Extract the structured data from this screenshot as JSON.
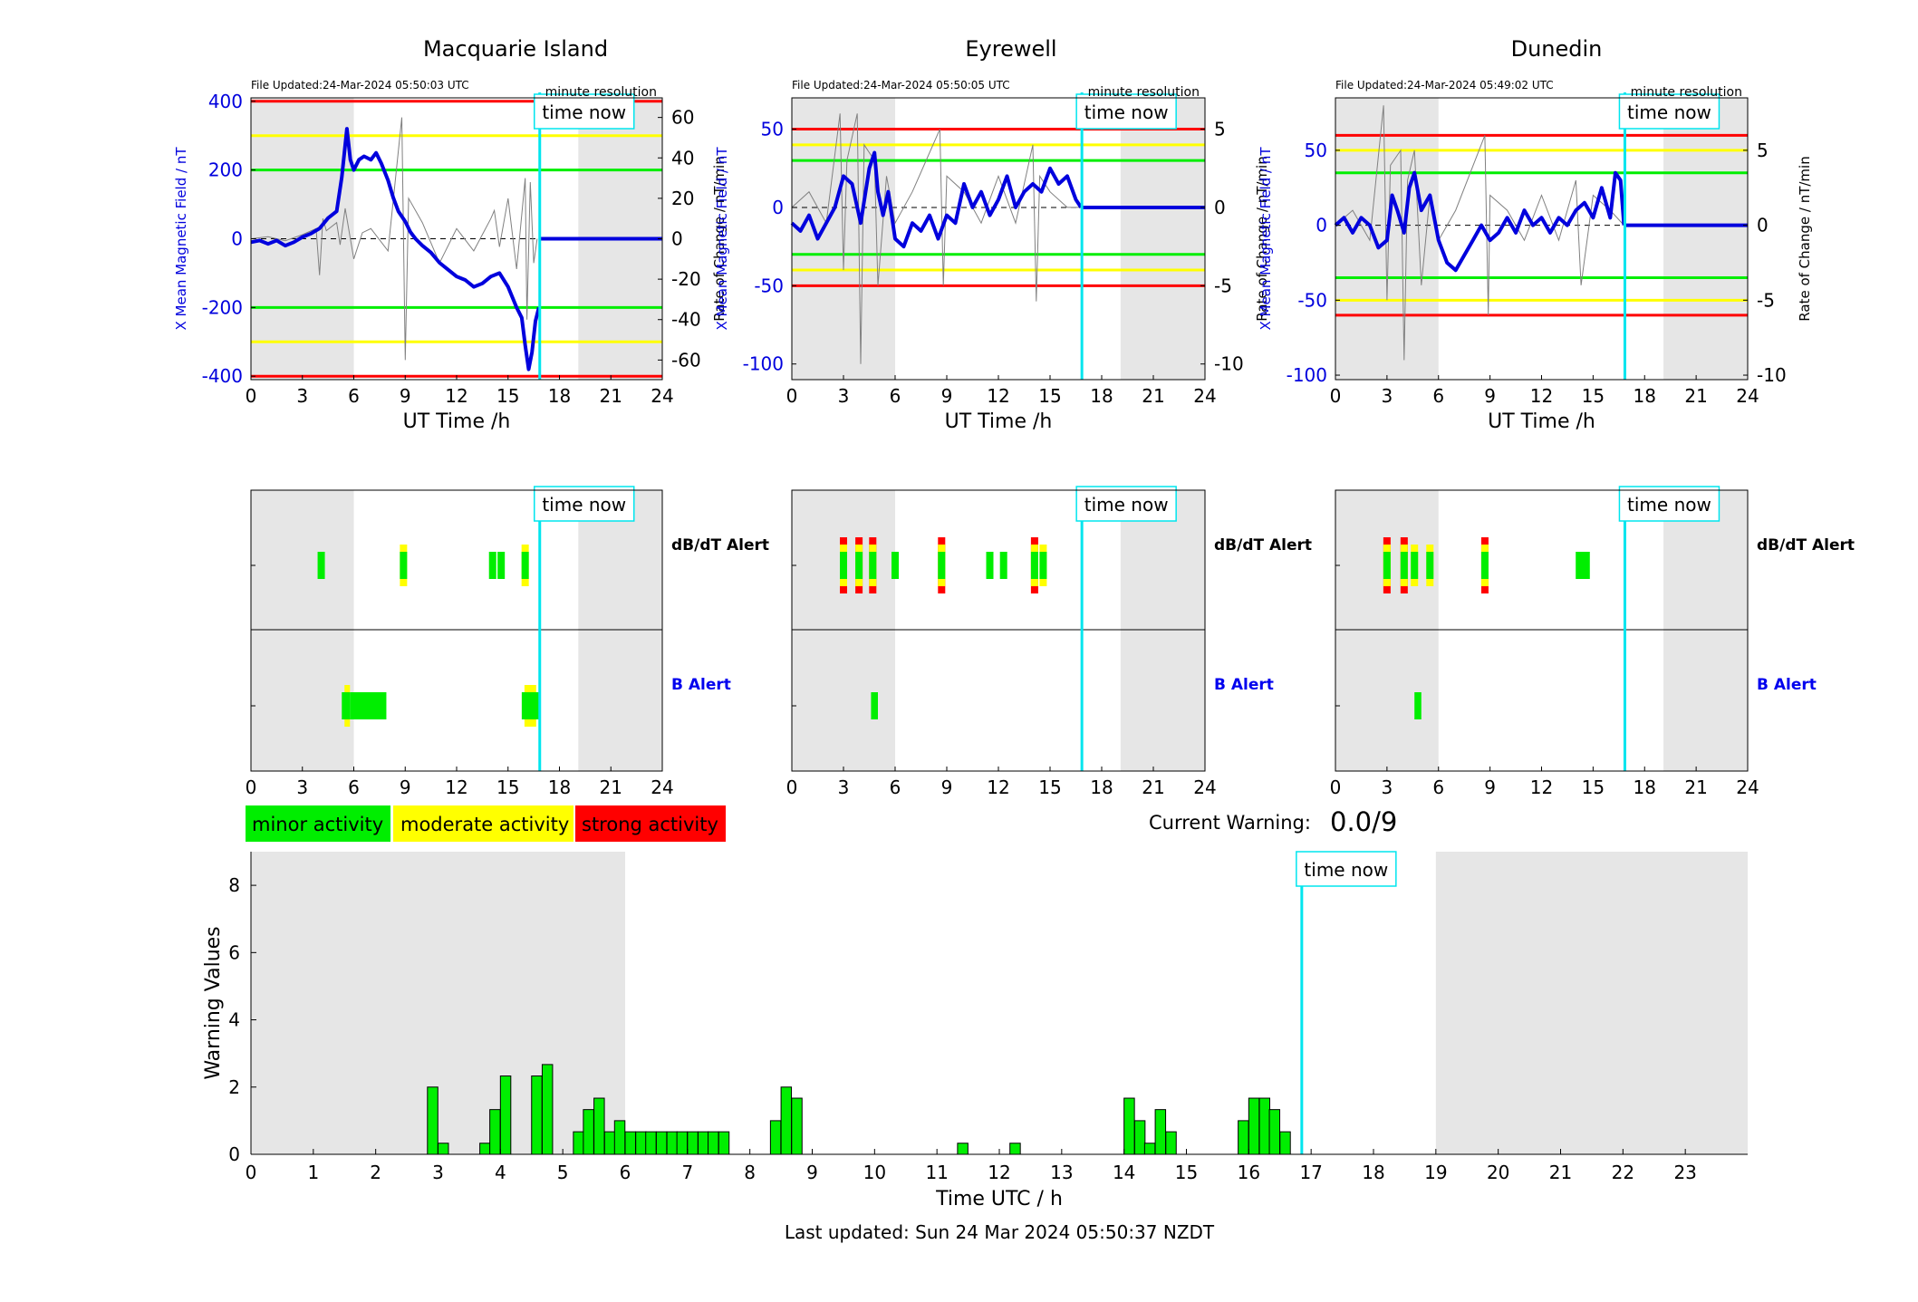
{
  "figure": {
    "last_updated": "Last updated: Sun 24 Mar 2024 05:50:37 NZDT",
    "current_warning_label": "Current Warning:",
    "current_warning_value": "0.0/9",
    "time_now_label": "time now",
    "minute_resolution_label": "minute resolution"
  },
  "colors": {
    "minor": "#00ee00",
    "moderate": "#ffff00",
    "strong": "#ff0000",
    "mean_field": "#0000dd",
    "rate_trace": "#808080",
    "time_now": "#00e5ee",
    "night_shade": "#e6e6e6",
    "b_alert_label": "#0000ee"
  },
  "legend": [
    {
      "label": "minor activity",
      "level": "minor"
    },
    {
      "label": "moderate activity",
      "level": "moderate"
    },
    {
      "label": "strong activity",
      "level": "strong"
    }
  ],
  "chart_data": [
    {
      "type": "line",
      "title": "Macquarie Island",
      "file_updated": "File Updated:24-Mar-2024 05:50:03 UTC",
      "xlabel": "UT Time /h",
      "ylabel_left": "X Mean Magnetic Field / nT",
      "ylabel_right": "Rate of Change / nT/min",
      "xlim": [
        0,
        24
      ],
      "xticks": [
        0,
        3,
        6,
        9,
        12,
        15,
        18,
        21,
        24
      ],
      "ylim_left": [
        -410,
        410
      ],
      "yticks_left": [
        -400,
        -200,
        0,
        200,
        400
      ],
      "ylim_right": [
        -69.7,
        69.7
      ],
      "yticks_right": [
        -60,
        -40,
        -20,
        0,
        20,
        40,
        60
      ],
      "thresholds": [
        {
          "level": "strong",
          "values": [
            400,
            -400
          ]
        },
        {
          "level": "moderate",
          "values": [
            300,
            -300
          ]
        },
        {
          "level": "minor",
          "values": [
            200,
            -200
          ]
        }
      ],
      "time_now": 16.85,
      "night": [
        [
          0,
          6
        ],
        [
          19.1,
          24
        ]
      ],
      "mean_field": {
        "x": [
          0,
          0.5,
          1,
          1.5,
          2,
          2.5,
          3,
          3.5,
          4,
          4.5,
          5,
          5.3,
          5.6,
          5.8,
          6,
          6.3,
          6.6,
          7,
          7.3,
          7.6,
          8,
          8.3,
          8.6,
          9,
          9.3,
          9.6,
          10,
          10.5,
          11,
          11.5,
          12,
          12.5,
          13,
          13.5,
          14,
          14.5,
          15,
          15.5,
          15.8,
          16,
          16.2,
          16.4,
          16.6,
          16.8
        ],
        "y": [
          -10,
          -5,
          -15,
          -5,
          -20,
          -10,
          5,
          15,
          30,
          60,
          80,
          180,
          320,
          230,
          200,
          230,
          240,
          230,
          250,
          220,
          170,
          120,
          80,
          50,
          20,
          0,
          -20,
          -40,
          -70,
          -90,
          -110,
          -120,
          -140,
          -130,
          -110,
          -100,
          -140,
          -200,
          -230,
          -310,
          -380,
          -330,
          -240,
          -200
        ]
      },
      "rate": {
        "x": [
          0,
          1,
          2,
          3,
          3.8,
          4,
          4.2,
          4.4,
          5,
          5.2,
          5.5,
          6,
          6.5,
          7,
          8,
          8.8,
          9,
          9.2,
          10,
          11,
          12,
          13,
          14,
          14.2,
          14.5,
          15,
          15.5,
          16,
          16.1,
          16.3,
          16.5,
          16.7
        ],
        "y": [
          0,
          1,
          -1,
          2,
          5,
          -18,
          10,
          4,
          8,
          -3,
          15,
          -10,
          3,
          5,
          -6,
          60,
          -60,
          20,
          8,
          -12,
          5,
          -6,
          10,
          14,
          -4,
          20,
          -15,
          30,
          -40,
          28,
          -12,
          0
        ]
      },
      "db_dt_alerts": [
        {
          "x": 4.1,
          "levels": [
            "minor"
          ]
        },
        {
          "x": 8.9,
          "levels": [
            "minor",
            "moderate"
          ]
        },
        {
          "x": 14.1,
          "levels": [
            "minor"
          ]
        },
        {
          "x": 14.6,
          "levels": [
            "minor"
          ]
        },
        {
          "x": 16.0,
          "levels": [
            "minor",
            "moderate"
          ]
        }
      ],
      "b_alerts": [
        {
          "x": [
            5.3,
            5.8
          ],
          "levels": [
            "minor",
            "moderate"
          ]
        },
        {
          "x": [
            5.8,
            7.9
          ],
          "levels": [
            "minor"
          ]
        },
        {
          "x": [
            15.8,
            16.8
          ],
          "levels": [
            "minor",
            "moderate"
          ]
        }
      ]
    },
    {
      "type": "line",
      "title": "Eyrewell",
      "file_updated": "File Updated:24-Mar-2024 05:50:05 UTC",
      "xlabel": "UT Time /h",
      "ylabel_left": "X Mean Magnetic Field / nT",
      "ylabel_right": "Rate of Change / nT/min",
      "xlim": [
        0,
        24
      ],
      "xticks": [
        0,
        3,
        6,
        9,
        12,
        15,
        18,
        21,
        24
      ],
      "ylim_left": [
        -110,
        70
      ],
      "yticks_left": [
        -100,
        -50,
        0,
        50
      ],
      "ylim_right": [
        -11,
        7
      ],
      "yticks_right": [
        -10,
        -5,
        0,
        5
      ],
      "thresholds": [
        {
          "level": "strong",
          "values": [
            50,
            -50
          ]
        },
        {
          "level": "moderate",
          "values": [
            40,
            -40
          ]
        },
        {
          "level": "minor",
          "values": [
            30,
            -30
          ]
        }
      ],
      "time_now": 16.85,
      "night": [
        [
          0,
          6
        ],
        [
          19.1,
          24
        ]
      ],
      "mean_field": {
        "x": [
          0,
          0.5,
          1,
          1.5,
          2,
          2.5,
          3,
          3.5,
          4,
          4.5,
          4.8,
          5,
          5.3,
          5.6,
          6,
          6.5,
          7,
          7.5,
          8,
          8.5,
          9,
          9.5,
          10,
          10.5,
          11,
          11.5,
          12,
          12.5,
          13,
          13.5,
          14,
          14.5,
          15,
          15.5,
          16,
          16.5,
          16.8
        ],
        "y": [
          -10,
          -15,
          -5,
          -20,
          -10,
          0,
          20,
          15,
          -10,
          25,
          35,
          10,
          -5,
          10,
          -20,
          -25,
          -10,
          -15,
          -5,
          -20,
          -5,
          -10,
          15,
          0,
          10,
          -5,
          5,
          20,
          0,
          10,
          15,
          10,
          25,
          15,
          20,
          5,
          0
        ]
      },
      "rate": {
        "x": [
          0,
          1,
          2,
          2.8,
          3,
          3.2,
          3.8,
          4,
          4.2,
          4.8,
          5,
          5.5,
          6,
          7,
          8.6,
          8.8,
          9,
          10,
          11,
          12,
          13,
          14,
          14.2,
          14.4,
          15,
          16,
          16.8
        ],
        "y": [
          0,
          1,
          -1,
          6,
          -4,
          3,
          6,
          -10,
          4,
          3,
          -5,
          2,
          -1,
          1,
          5,
          -5,
          2,
          1,
          -1,
          2,
          -1,
          4,
          -6,
          2,
          1,
          0,
          0
        ]
      },
      "db_dt_alerts": [
        {
          "x": 3.0,
          "levels": [
            "minor",
            "moderate",
            "strong"
          ]
        },
        {
          "x": 3.9,
          "levels": [
            "minor",
            "moderate",
            "strong"
          ]
        },
        {
          "x": 4.7,
          "levels": [
            "minor",
            "moderate",
            "strong"
          ]
        },
        {
          "x": 6.0,
          "levels": [
            "minor"
          ]
        },
        {
          "x": 8.7,
          "levels": [
            "minor",
            "moderate",
            "strong"
          ]
        },
        {
          "x": 11.5,
          "levels": [
            "minor"
          ]
        },
        {
          "x": 12.3,
          "levels": [
            "minor"
          ]
        },
        {
          "x": 14.1,
          "levels": [
            "minor",
            "moderate",
            "strong"
          ]
        },
        {
          "x": 14.6,
          "levels": [
            "minor",
            "moderate"
          ]
        }
      ],
      "b_alerts": [
        {
          "x": [
            4.6,
            5.0
          ],
          "levels": [
            "minor"
          ]
        }
      ]
    },
    {
      "type": "line",
      "title": "Dunedin",
      "file_updated": "File Updated:24-Mar-2024 05:49:02 UTC",
      "xlabel": "UT Time /h",
      "ylabel_left": "X Mean Magnetic Field / nT",
      "ylabel_right": "Rate of Change / nT/min",
      "xlim": [
        0,
        24
      ],
      "xticks": [
        0,
        3,
        6,
        9,
        12,
        15,
        18,
        21,
        24
      ],
      "ylim_left": [
        -103,
        85
      ],
      "yticks_left": [
        -100,
        -50,
        0,
        50
      ],
      "ylim_right": [
        -10.3,
        8.5
      ],
      "yticks_right": [
        -10,
        -5,
        0,
        5
      ],
      "thresholds": [
        {
          "level": "strong",
          "values": [
            60,
            -60
          ]
        },
        {
          "level": "moderate",
          "values": [
            50,
            -50
          ]
        },
        {
          "level": "minor",
          "values": [
            35,
            -35
          ]
        }
      ],
      "time_now": 16.85,
      "night": [
        [
          0,
          6
        ],
        [
          19.1,
          24
        ]
      ],
      "mean_field": {
        "x": [
          0,
          0.5,
          1,
          1.5,
          2,
          2.5,
          3,
          3.3,
          3.6,
          4,
          4.3,
          4.6,
          5,
          5.5,
          6,
          6.5,
          7,
          7.5,
          8,
          8.5,
          9,
          9.5,
          10,
          10.5,
          11,
          11.5,
          12,
          12.5,
          13,
          13.5,
          14,
          14.5,
          15,
          15.5,
          16,
          16.3,
          16.6,
          16.8
        ],
        "y": [
          0,
          5,
          -5,
          5,
          0,
          -15,
          -10,
          20,
          10,
          -5,
          25,
          35,
          10,
          20,
          -10,
          -25,
          -30,
          -20,
          -10,
          0,
          -10,
          -5,
          5,
          -5,
          10,
          0,
          5,
          -5,
          5,
          0,
          10,
          15,
          5,
          25,
          5,
          35,
          30,
          0
        ]
      },
      "rate": {
        "x": [
          0,
          1,
          2,
          2.8,
          3,
          3.2,
          3.8,
          4,
          4.2,
          4.6,
          5,
          5.5,
          6,
          7,
          8.7,
          8.9,
          9,
          10,
          11,
          12,
          13,
          14,
          14.3,
          15,
          16,
          16.8
        ],
        "y": [
          0,
          1,
          -1,
          8,
          -5,
          4,
          5,
          -9,
          3,
          5,
          -4,
          2,
          -1,
          1,
          6,
          -6,
          2,
          1,
          -1,
          2,
          -1,
          3,
          -4,
          2,
          1,
          0
        ]
      },
      "db_dt_alerts": [
        {
          "x": 3.0,
          "levels": [
            "minor",
            "moderate",
            "strong"
          ]
        },
        {
          "x": 4.0,
          "levels": [
            "minor",
            "moderate",
            "strong"
          ]
        },
        {
          "x": 4.6,
          "levels": [
            "minor",
            "moderate"
          ]
        },
        {
          "x": 5.5,
          "levels": [
            "minor",
            "moderate"
          ]
        },
        {
          "x": 8.7,
          "levels": [
            "minor",
            "moderate",
            "strong"
          ]
        },
        {
          "x": 14.2,
          "levels": [
            "minor"
          ]
        },
        {
          "x": 14.6,
          "levels": [
            "minor"
          ]
        }
      ],
      "b_alerts": [
        {
          "x": [
            4.6,
            5.0
          ],
          "levels": [
            "minor"
          ]
        }
      ]
    },
    {
      "type": "bar",
      "title": "",
      "xlabel": "Time UTC / h",
      "ylabel": "Warning Values",
      "xlim": [
        0,
        24
      ],
      "xticks": [
        0,
        1,
        2,
        3,
        4,
        5,
        6,
        7,
        8,
        9,
        10,
        11,
        12,
        13,
        14,
        15,
        16,
        17,
        18,
        19,
        20,
        21,
        22,
        23
      ],
      "ylim": [
        0,
        9
      ],
      "yticks": [
        0,
        2,
        4,
        6,
        8
      ],
      "time_now": 16.85,
      "night": [
        [
          0,
          6
        ],
        [
          19,
          24
        ]
      ],
      "bar_width_h": 0.1667,
      "bars": {
        "x": [
          2.83,
          3.0,
          3.67,
          3.83,
          4.0,
          4.5,
          4.67,
          5.17,
          5.33,
          5.5,
          5.67,
          5.83,
          6.0,
          6.17,
          6.33,
          6.5,
          6.67,
          6.83,
          7.0,
          7.17,
          7.33,
          7.5,
          8.33,
          8.5,
          8.67,
          11.33,
          12.17,
          14.0,
          14.17,
          14.33,
          14.5,
          14.67,
          15.83,
          16.0,
          16.17,
          16.33,
          16.5
        ],
        "values": [
          2.0,
          0.33,
          0.33,
          1.33,
          2.33,
          2.33,
          2.67,
          0.67,
          1.33,
          1.67,
          0.67,
          1.0,
          0.67,
          0.67,
          0.67,
          0.67,
          0.67,
          0.67,
          0.67,
          0.67,
          0.67,
          0.67,
          1.0,
          2.0,
          1.67,
          0.33,
          0.33,
          1.67,
          1.0,
          0.33,
          1.33,
          0.67,
          1.0,
          1.67,
          1.67,
          1.33,
          0.67
        ]
      }
    }
  ],
  "alert_labels": {
    "db_dt": "dB/dT Alert",
    "b": "B Alert"
  }
}
